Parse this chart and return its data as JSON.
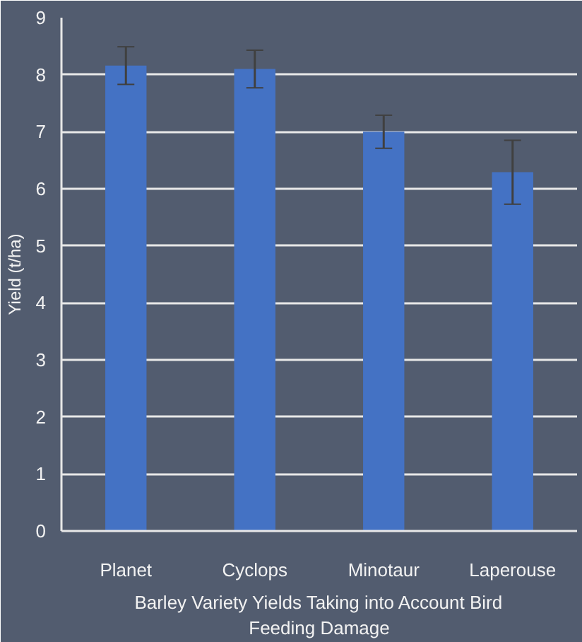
{
  "chart_data": {
    "type": "bar",
    "xlabel": "Barley Variety Yields Taking into Account Bird Feeding Damage",
    "ylabel": "Yield (t/ha)",
    "categories": [
      "Planet",
      "Cyclops",
      "Minotaur",
      "Laperouse"
    ],
    "values": [
      8.16,
      8.1,
      7.0,
      6.29
    ],
    "errors": [
      0.33,
      0.33,
      0.29,
      0.56
    ],
    "color": "#4472c4",
    "ylim": [
      0,
      9
    ],
    "yticks": [
      0,
      1,
      2,
      3,
      4,
      5,
      6,
      7,
      8,
      9
    ],
    "grid": "y"
  }
}
